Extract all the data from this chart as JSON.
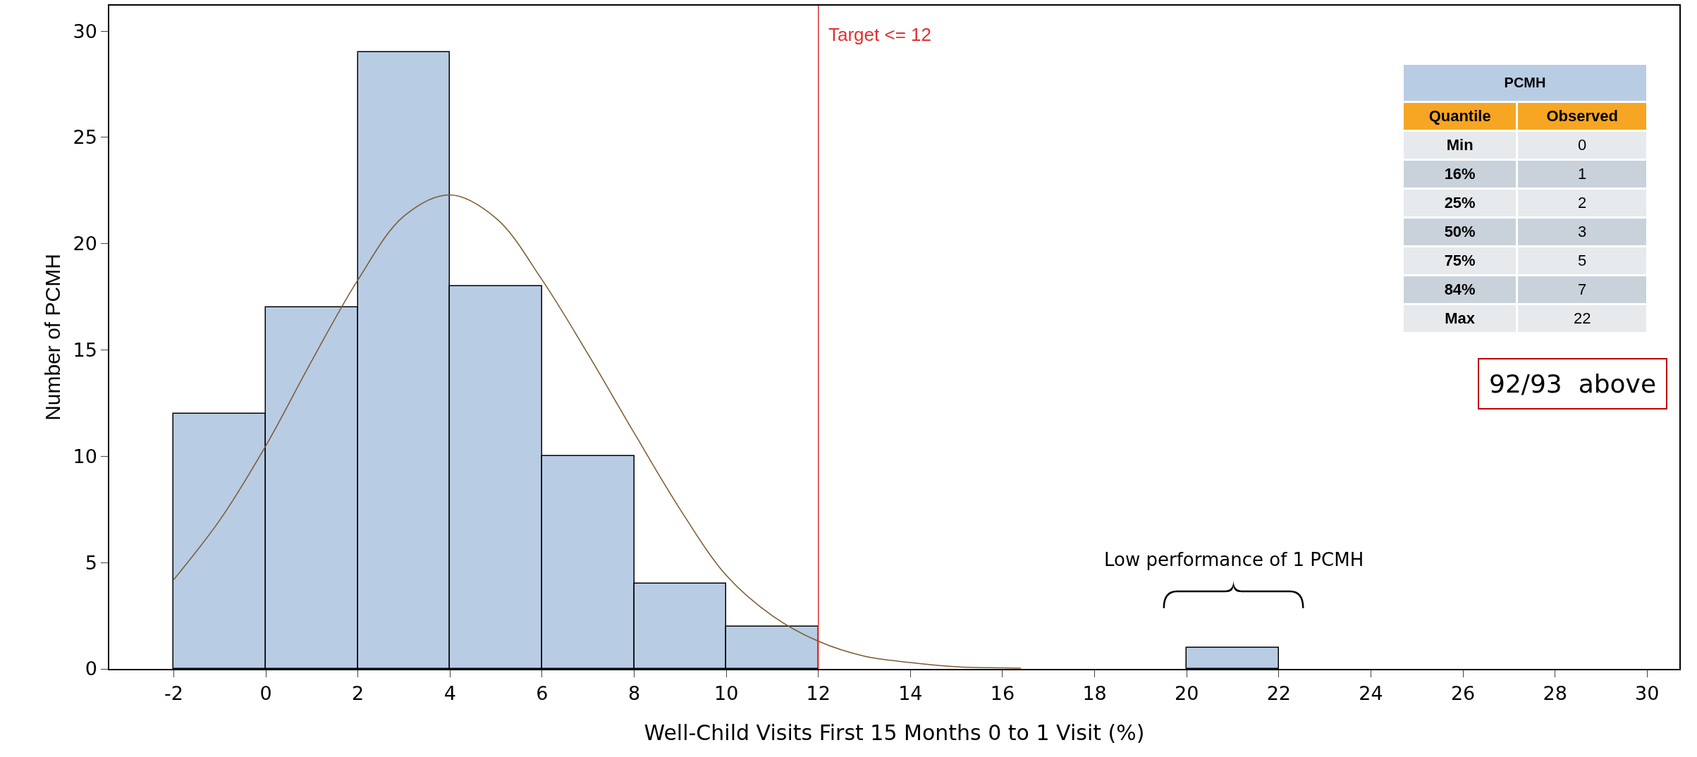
{
  "chart_data": [
    {
      "type": "histogram",
      "xlabel": "Well-Child Visits First 15 Months 0 to 1 Visit (%)",
      "ylabel": "Number of PCMH",
      "bins": [
        -2,
        0,
        2,
        4,
        6,
        8,
        10,
        12,
        14,
        16,
        18,
        20,
        22
      ],
      "values": [
        12,
        17,
        29,
        18,
        10,
        4,
        2,
        0,
        0,
        0,
        0,
        1
      ],
      "color": "#b8cce4",
      "series": [
        {
          "type": "line",
          "color": "#7a5a30",
          "x": [
            -2,
            -1,
            0,
            1,
            2,
            3,
            4,
            5,
            6,
            7,
            8,
            9,
            10,
            11,
            12,
            13,
            14,
            15,
            16,
            16.4
          ],
          "values": [
            4.2,
            7,
            10.5,
            14.5,
            18.3,
            21.3,
            22.3,
            21.2,
            18.3,
            14.8,
            11.1,
            7.5,
            4.4,
            2.5,
            1.3,
            0.6,
            0.3,
            0.1,
            0.05,
            0.03
          ]
        }
      ],
      "xlim": [
        -3.4,
        30.7
      ],
      "ylim": [
        0,
        31.2
      ],
      "xticks": [
        -2,
        0,
        2,
        4,
        6,
        8,
        10,
        12,
        14,
        16,
        18,
        20,
        22,
        24,
        26,
        28,
        30
      ],
      "yticks": [
        0,
        5,
        10,
        15,
        20,
        25,
        30
      ],
      "ref_lines": [
        {
          "axis": "x",
          "value": 12,
          "label": "Target <= 12",
          "color": "#e03030"
        }
      ],
      "annotations": [
        "92/93  above",
        "Low performance of 1 PCMH"
      ],
      "grid": false
    },
    {
      "type": "other",
      "title": "PCMH",
      "xlabel": "Quantile",
      "ylabel": "Observed",
      "categories": [
        "Min",
        "16%",
        "25%",
        "50%",
        "75%",
        "84%",
        "Max"
      ],
      "values": [
        0,
        1,
        2,
        3,
        5,
        7,
        22
      ],
      "data_labels": true
    }
  ]
}
